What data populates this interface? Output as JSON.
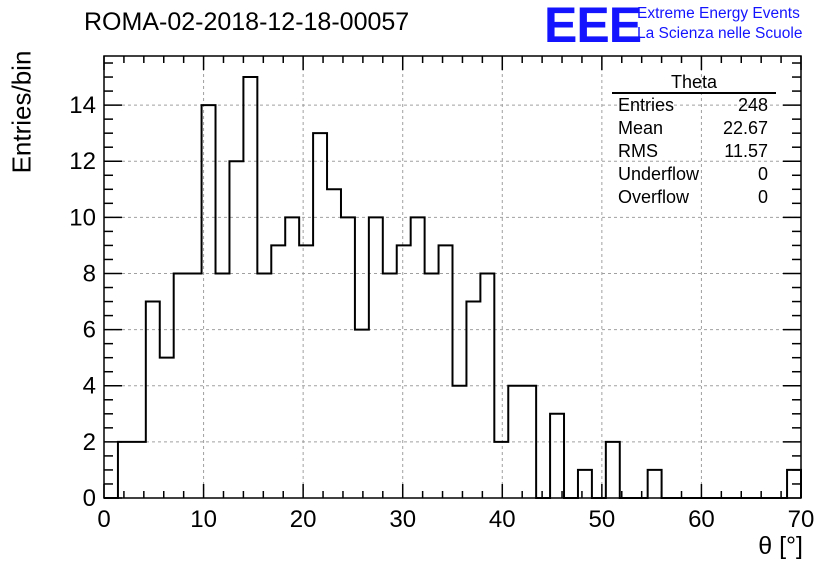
{
  "title": "ROMA-02-2018-12-18-00057",
  "logo": {
    "mark": "EEE",
    "line1": "Extreme Energy Events",
    "line2": "La Scienza nelle Scuole",
    "color": "#1414ff"
  },
  "stats": {
    "name": "Theta",
    "rows": [
      {
        "label": "Entries",
        "value": "248"
      },
      {
        "label": "Mean",
        "value": "22.67"
      },
      {
        "label": "RMS",
        "value": "11.57"
      },
      {
        "label": "Underflow",
        "value": "0"
      },
      {
        "label": "Overflow",
        "value": "0"
      }
    ]
  },
  "chart_data": {
    "type": "bar",
    "histogram": true,
    "xlabel": "θ [°]",
    "ylabel": "Entries/bin",
    "xlim": [
      0,
      70
    ],
    "ylim": [
      0,
      15.75
    ],
    "xticks": [
      0,
      10,
      20,
      30,
      40,
      50,
      60,
      70
    ],
    "yticks": [
      0,
      2,
      4,
      6,
      8,
      10,
      12,
      14
    ],
    "grid": true,
    "bin_width": 1.4,
    "bin_edges_start": 0,
    "values": [
      0,
      2,
      2,
      7,
      5,
      8,
      8,
      14,
      8,
      12,
      15,
      8,
      9,
      10,
      9,
      13,
      11,
      10,
      6,
      10,
      8,
      9,
      10,
      8,
      9,
      4,
      7,
      8,
      2,
      4,
      4,
      0,
      3,
      0,
      1,
      0,
      2,
      0,
      0,
      1,
      0,
      0,
      0,
      0,
      0,
      0,
      0,
      0,
      0,
      1
    ]
  }
}
